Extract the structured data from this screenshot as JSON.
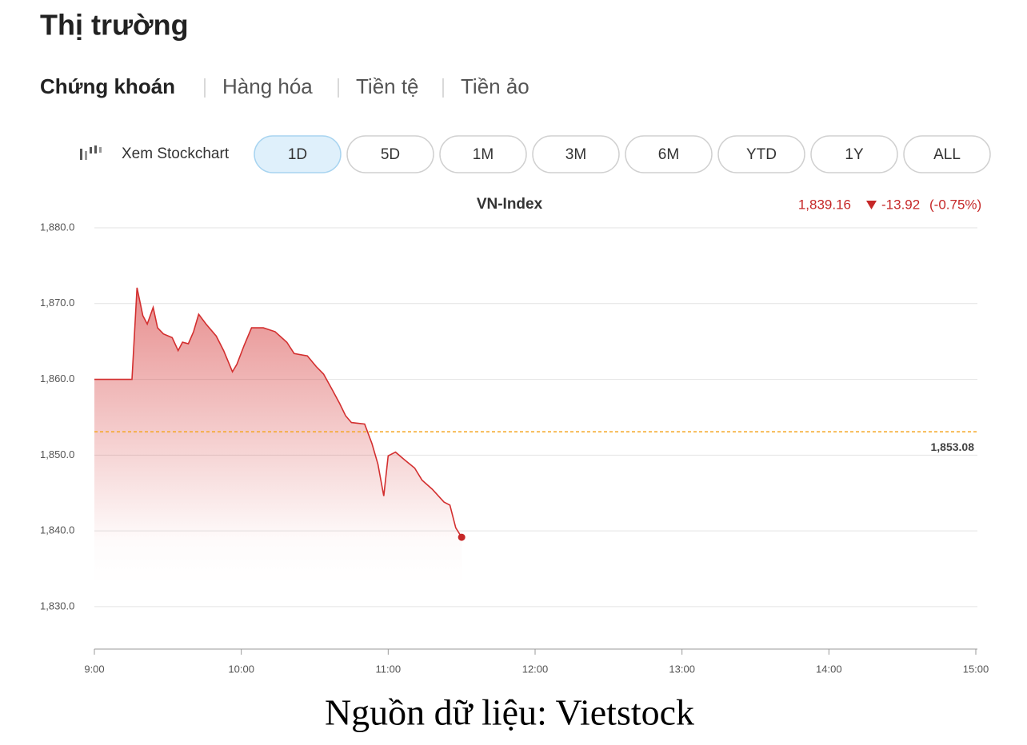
{
  "header": {
    "title": "Thị trường"
  },
  "tabs": {
    "items": [
      "Chứng khoán",
      "Hàng hóa",
      "Tiền tệ",
      "Tiền ảo"
    ],
    "active": 0
  },
  "toolbar": {
    "link": "Xem Stockchart",
    "ranges": [
      "1D",
      "5D",
      "1M",
      "3M",
      "6M",
      "YTD",
      "1Y",
      "ALL"
    ],
    "active": 0
  },
  "chart_data": {
    "type": "line",
    "title": "VN-Index",
    "color": "#d32f2f",
    "quote": {
      "price": "1,839.16",
      "change": "-13.92",
      "change_pct": "(-0.75%)"
    },
    "x": [
      9.0,
      9.256,
      9.29,
      9.33,
      9.36,
      9.4,
      9.43,
      9.47,
      9.53,
      9.57,
      9.6,
      9.64,
      9.675,
      9.71,
      9.76,
      9.83,
      9.88,
      9.94,
      9.97,
      10.02,
      10.07,
      10.15,
      10.23,
      10.31,
      10.36,
      10.45,
      10.51,
      10.56,
      10.62,
      10.67,
      10.71,
      10.75,
      10.84,
      10.89,
      10.93,
      10.97,
      11.0,
      11.05,
      11.11,
      11.18,
      11.23,
      11.3,
      11.38,
      11.42,
      11.46,
      11.5
    ],
    "values": [
      1860.0,
      1860.0,
      1872.1,
      1868.4,
      1867.3,
      1869.5,
      1866.8,
      1866.0,
      1865.5,
      1863.8,
      1864.9,
      1864.7,
      1866.3,
      1868.6,
      1867.3,
      1865.7,
      1863.8,
      1861.0,
      1862.0,
      1864.5,
      1866.8,
      1866.8,
      1866.3,
      1864.9,
      1863.4,
      1863.1,
      1861.7,
      1860.7,
      1858.6,
      1856.8,
      1855.2,
      1854.3,
      1854.1,
      1851.5,
      1848.8,
      1844.6,
      1849.9,
      1850.4,
      1849.4,
      1848.3,
      1846.7,
      1845.5,
      1843.8,
      1843.4,
      1840.4,
      1839.16
    ],
    "reference": {
      "value": 1853.08,
      "label": "1,853.08",
      "color": "#f5a623"
    },
    "xlim": [
      9,
      15
    ],
    "xticks": [
      {
        "value": 9,
        "label": "9:00"
      },
      {
        "value": 10,
        "label": "10:00"
      },
      {
        "value": 11,
        "label": "11:00"
      },
      {
        "value": 12,
        "label": "12:00"
      },
      {
        "value": 13,
        "label": "13:00"
      },
      {
        "value": 14,
        "label": "14:00"
      },
      {
        "value": 15,
        "label": "15:00"
      }
    ],
    "ylim": [
      1824.4,
      1880
    ],
    "yticks": [
      {
        "value": 1830,
        "label": "1,830.0"
      },
      {
        "value": 1840,
        "label": "1,840.0"
      },
      {
        "value": 1850,
        "label": "1,850.0"
      },
      {
        "value": 1860,
        "label": "1,860.0"
      },
      {
        "value": 1870,
        "label": "1,870.0"
      },
      {
        "value": 1880,
        "label": "1,880.0"
      }
    ],
    "grid": true
  },
  "caption": "Nguồn dữ liệu: Vietstock"
}
